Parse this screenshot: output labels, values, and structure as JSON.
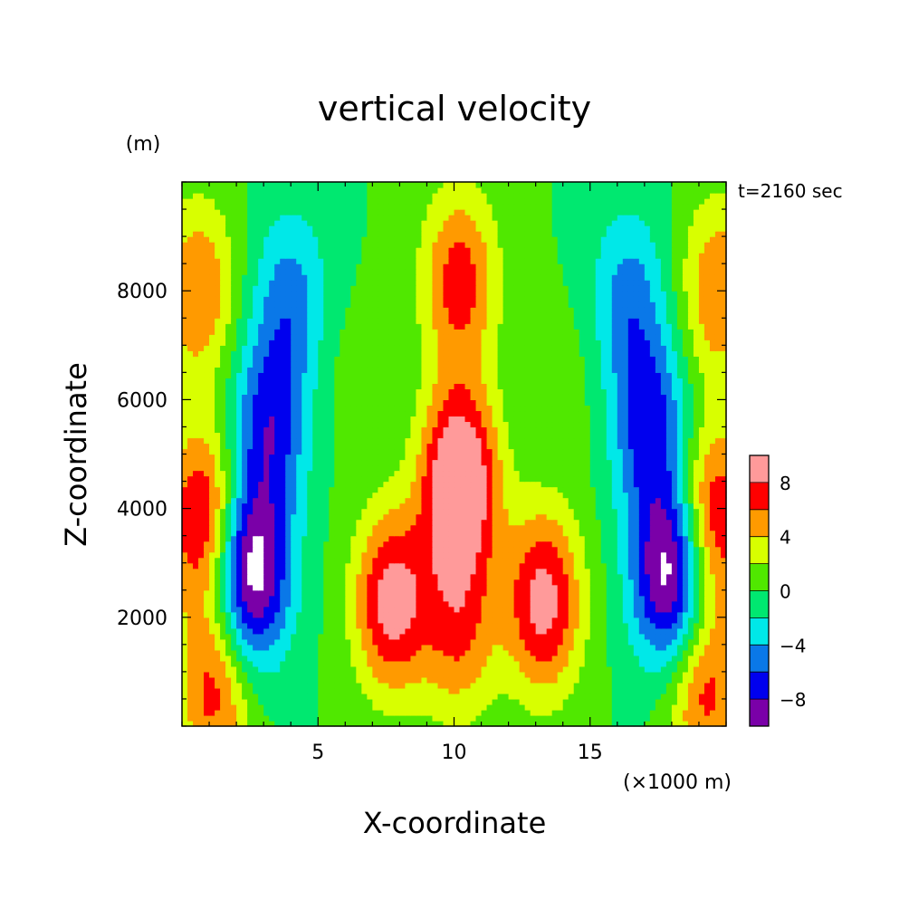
{
  "chart_data": {
    "type": "heatmap",
    "title": "vertical velocity",
    "xlabel": "X-coordinate",
    "ylabel": "Z-coordinate",
    "x_unit": "(×1000 m)",
    "y_unit": "(m)",
    "time_label": "t=2160 sec",
    "xlim": [
      0,
      20
    ],
    "ylim": [
      0,
      10000
    ],
    "x_ticks": [
      5,
      10,
      15
    ],
    "x_tick_labels": [
      "5",
      "10",
      "15"
    ],
    "y_ticks": [
      2000,
      4000,
      6000,
      8000
    ],
    "y_tick_labels": [
      "2000",
      "4000",
      "6000",
      "8000"
    ],
    "colorbar": {
      "levels": [
        -10,
        -8,
        -6,
        -4,
        -2,
        0,
        2,
        4,
        6,
        8,
        10
      ],
      "colors": [
        "#7a00a8",
        "#0000ee",
        "#0a78e8",
        "#00e8e8",
        "#00e870",
        "#50e800",
        "#d8ff00",
        "#ff9a00",
        "#ff0000",
        "#ff9a9a"
      ],
      "tick_values": [
        -8,
        -4,
        0,
        4,
        8
      ],
      "tick_labels": [
        "−8",
        "−4",
        "0",
        "4",
        "8"
      ]
    },
    "features": [
      {
        "x": 10.2,
        "z": 4500,
        "w": 12
      },
      {
        "x": 10.2,
        "z": 8200,
        "w": 7
      },
      {
        "x": 7.7,
        "z": 2300,
        "w": 9
      },
      {
        "x": 13.3,
        "z": 2300,
        "w": 9
      },
      {
        "x": 10.2,
        "z": 1800,
        "w": 6
      },
      {
        "x": 2.5,
        "z": 2800,
        "w": -12
      },
      {
        "x": 18.0,
        "z": 2800,
        "w": -12
      },
      {
        "x": 3.2,
        "z": 5500,
        "w": -7
      },
      {
        "x": 17.2,
        "z": 5500,
        "w": -7
      },
      {
        "x": 4.0,
        "z": 7800,
        "w": -5
      },
      {
        "x": 16.4,
        "z": 7800,
        "w": -5
      },
      {
        "x": 0.8,
        "z": 3800,
        "w": 9
      },
      {
        "x": 19.5,
        "z": 3800,
        "w": 9
      },
      {
        "x": 0.6,
        "z": 8000,
        "w": 6
      },
      {
        "x": 19.7,
        "z": 8000,
        "w": 6
      },
      {
        "x": 1.2,
        "z": 700,
        "w": 7
      },
      {
        "x": 19.2,
        "z": 700,
        "w": 7
      },
      {
        "x": 5.6,
        "z": 6500,
        "w": 1
      },
      {
        "x": 14.8,
        "z": 6500,
        "w": 1
      }
    ]
  }
}
